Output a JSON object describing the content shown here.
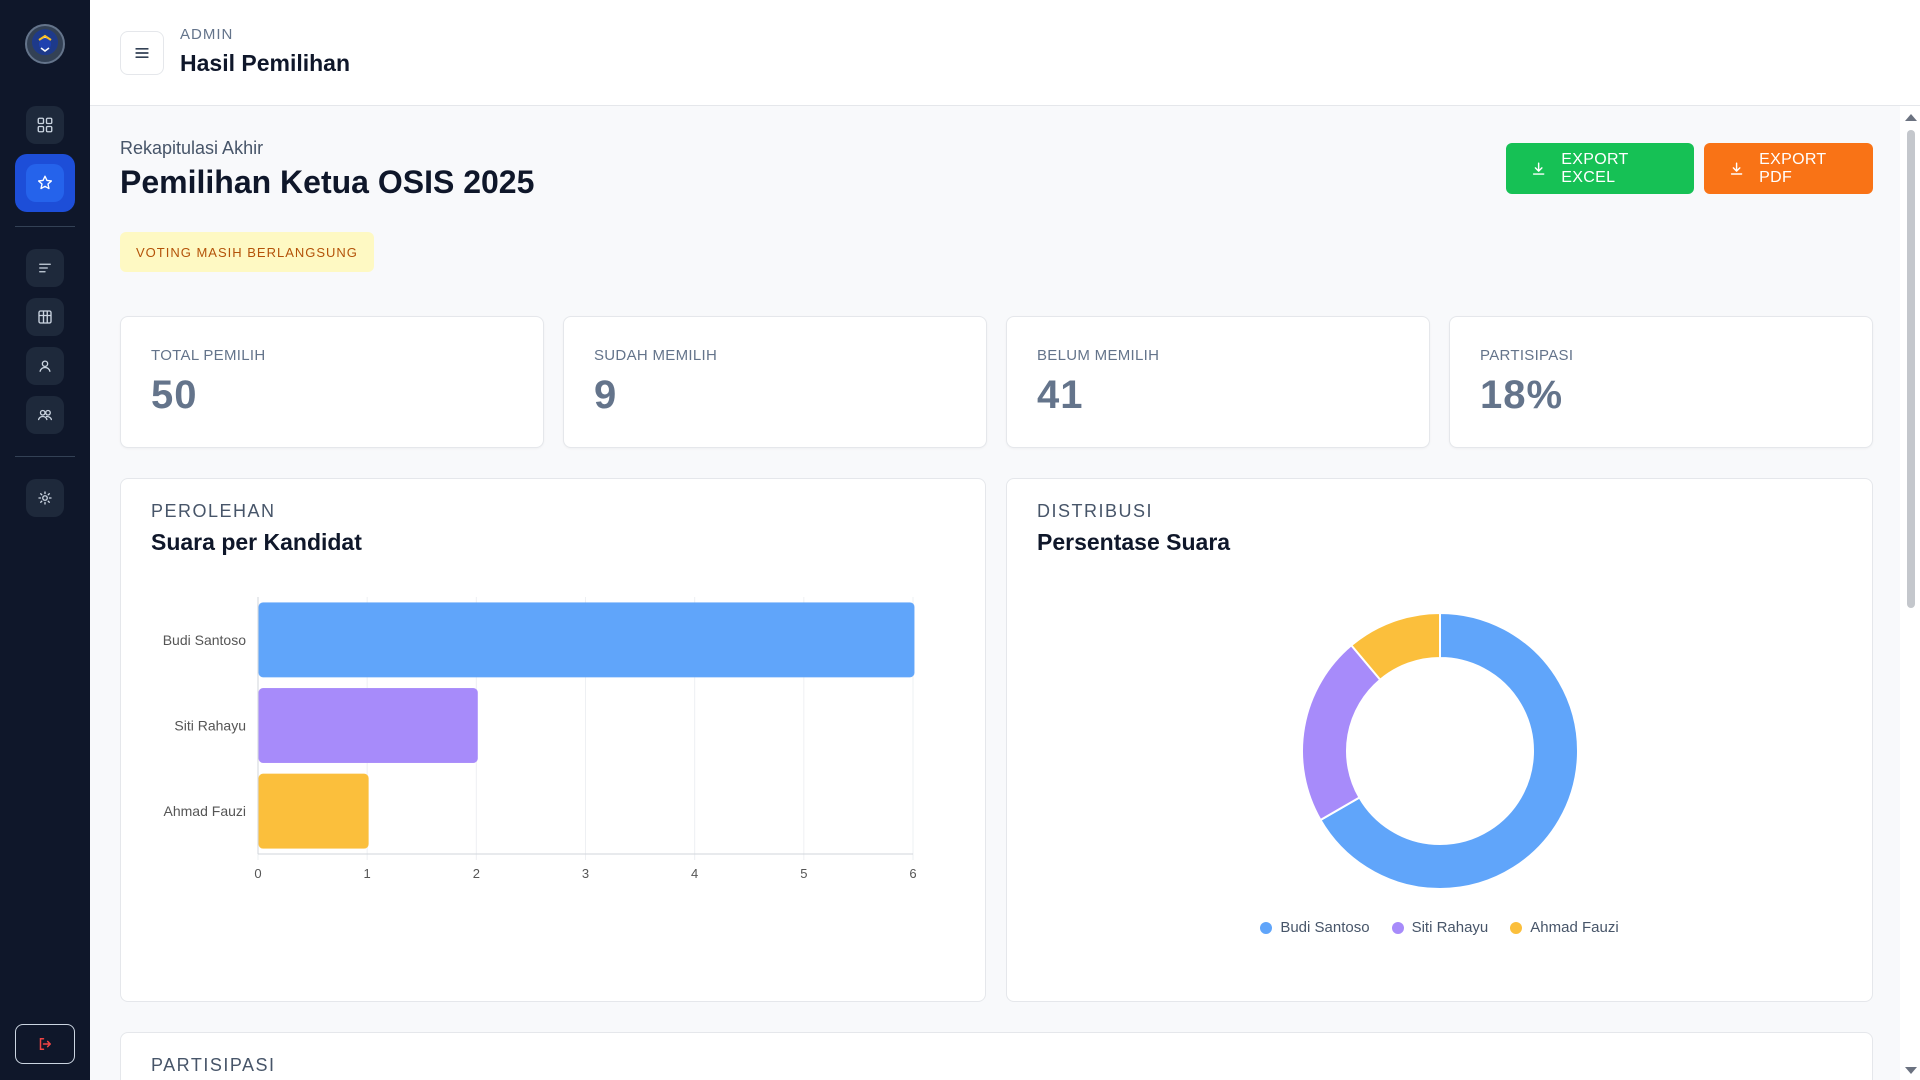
{
  "header": {
    "section": "ADMIN",
    "title": "Hasil Pemilihan"
  },
  "page": {
    "kicker": "Rekapitulasi Akhir",
    "title": "Pemilihan Ketua OSIS 2025",
    "status": "VOTING MASIH BERLANGSUNG",
    "export_excel": "EXPORT EXCEL",
    "export_pdf": "EXPORT PDF"
  },
  "stats": [
    {
      "label": "TOTAL PEMILIH",
      "value": "50"
    },
    {
      "label": "SUDAH MEMILIH",
      "value": "9"
    },
    {
      "label": "BELUM MEMILIH",
      "value": "41"
    },
    {
      "label": "PARTISIPASI",
      "value": "18%"
    }
  ],
  "bar_panel": {
    "kicker": "PEROLEHAN",
    "title": "Suara per Kandidat"
  },
  "pie_panel": {
    "kicker": "DISTRIBUSI",
    "title": "Persentase Suara"
  },
  "bottom_panel": {
    "kicker": "PARTISIPASI"
  },
  "colors": {
    "primary": "#2563eb",
    "excel": "#16c155",
    "pdf": "#f97316",
    "sidebar": "#0f172a"
  },
  "sidebar": {
    "icons": [
      "logo",
      "grid-icon",
      "star-icon",
      "list-icon",
      "table-icon",
      "user-icon",
      "users-icon",
      "gear-icon",
      "logout-icon"
    ]
  },
  "chart_data": [
    {
      "type": "bar",
      "orientation": "horizontal",
      "categories": [
        "Budi Santoso",
        "Siti Rahayu",
        "Ahmad Fauzi"
      ],
      "values": [
        6,
        2,
        1
      ],
      "colors": [
        "#60a5fa",
        "#a78bfa",
        "#fbbf3c"
      ],
      "xlim": [
        0,
        6
      ],
      "xticks": [
        "0",
        "1",
        "2",
        "3",
        "4",
        "5",
        "6"
      ],
      "grid": true
    },
    {
      "type": "pie",
      "donut": true,
      "labels": [
        "Budi Santoso",
        "Siti Rahayu",
        "Ahmad Fauzi"
      ],
      "values": [
        6,
        2,
        1
      ],
      "colors": [
        "#60a5fa",
        "#a78bfa",
        "#fbbf3c"
      ],
      "legend": "bottom"
    }
  ]
}
